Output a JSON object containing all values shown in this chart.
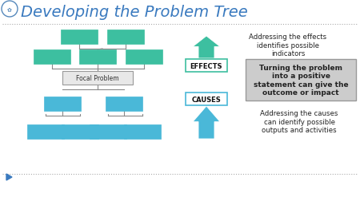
{
  "title": "Developing the Problem Tree",
  "title_fontsize": 14,
  "title_color": "#3a7abf",
  "bg_color": "#ffffff",
  "tree_line_color": "#888888",
  "green_color": "#3dbfa0",
  "blue_color": "#4ab8d8",
  "focal_box_color": "#e8e8e8",
  "focal_box_edge": "#999999",
  "effects_box_color": "#ffffff",
  "effects_box_edge": "#3dbfa0",
  "causes_box_color": "#ffffff",
  "causes_box_edge": "#4ab8d8",
  "info_box_color": "#cccccc",
  "info_box_edge": "#999999",
  "text_color": "#222222",
  "dotted_line_color": "#aaaaaa",
  "fao_circle_color": "#5588bb",
  "effects_label": "EFFECTS",
  "causes_label": "CAUSES",
  "focal_label": "Focal Problem",
  "effects_text": "Addressing the effects\nidentifies possible\nindicators",
  "causes_text": "Addressing the causes\ncan identify possible\noutputs and activities",
  "center_text": "Turning the problem\ninto a positive\nstatement can give the\noutcome or impact"
}
